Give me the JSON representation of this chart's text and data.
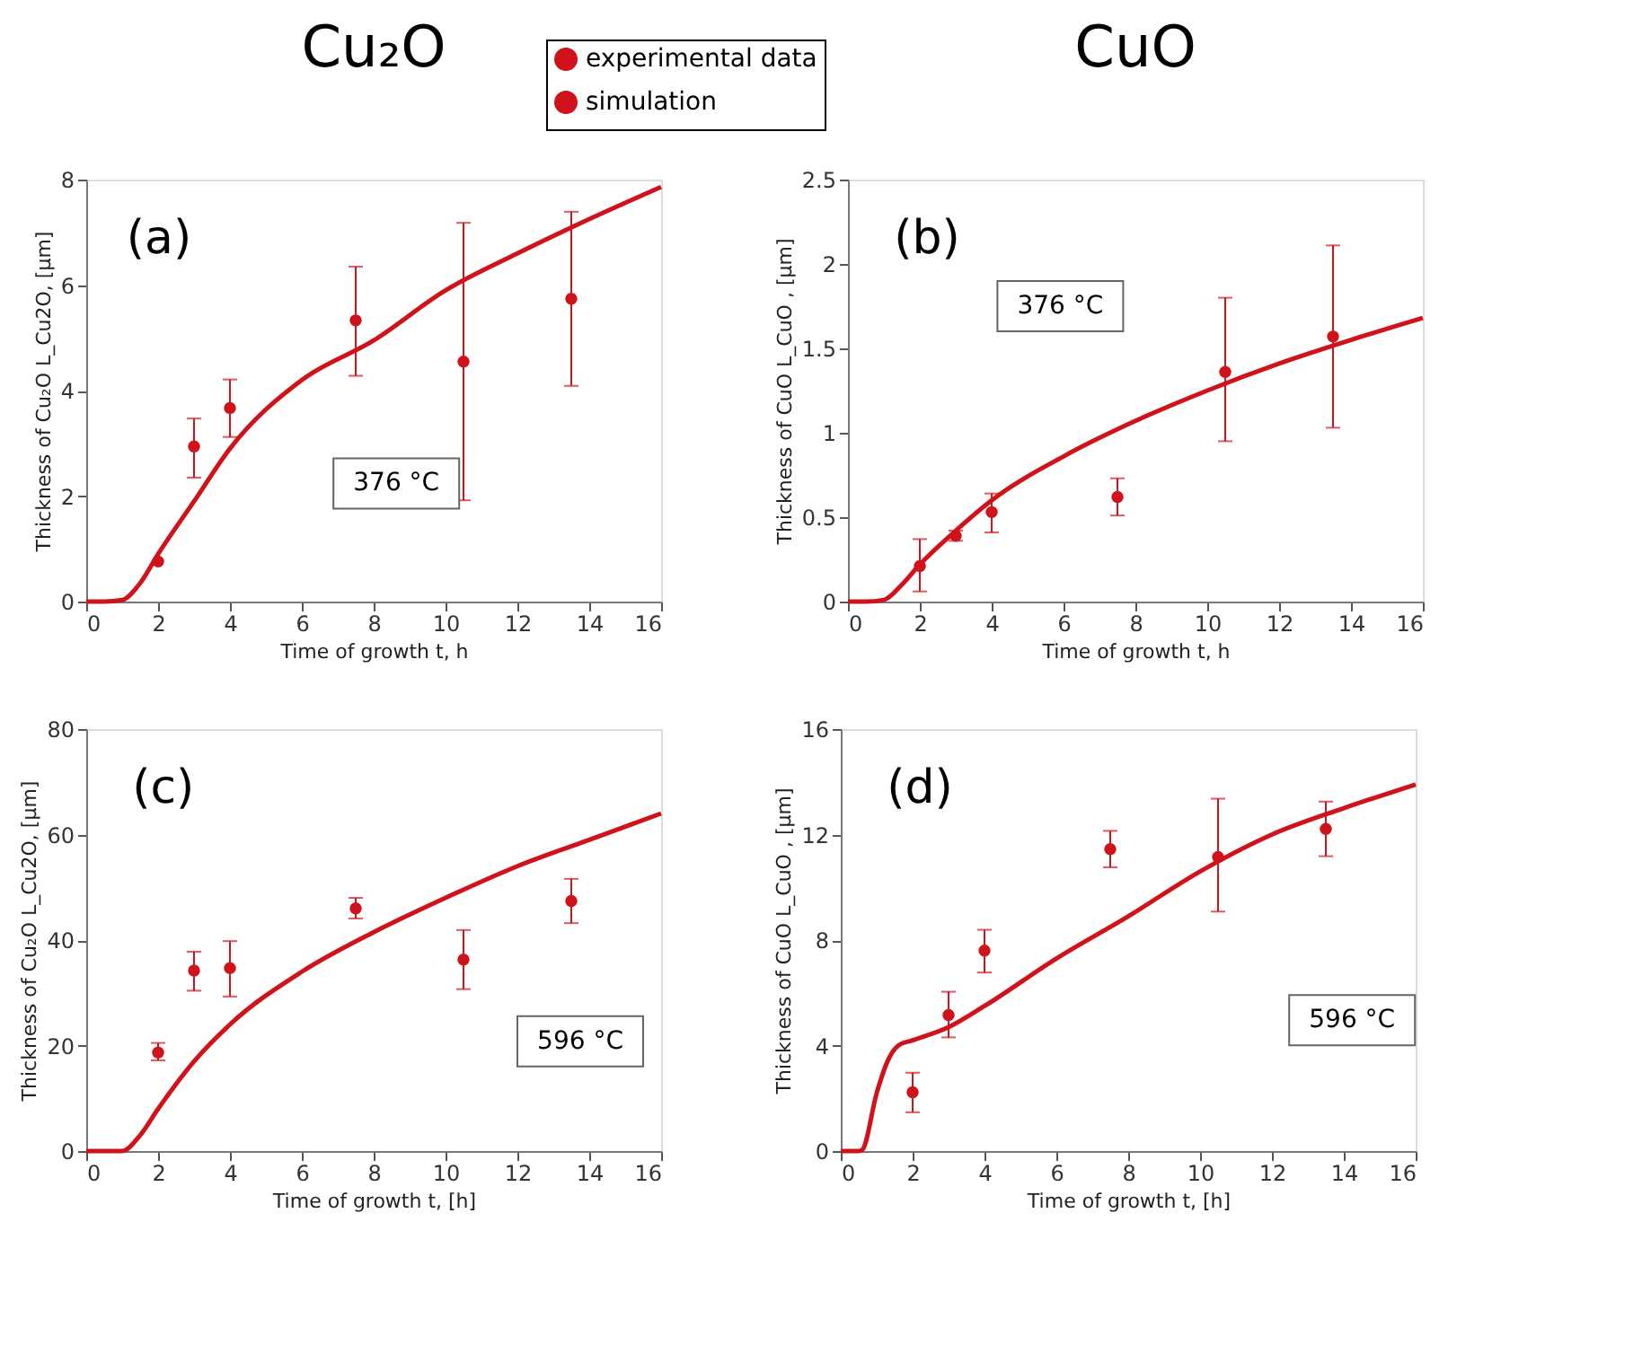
{
  "chart_data": [
    {
      "type": "scatter",
      "title": "Cu₂O",
      "xlabel": "Time of growth t, h",
      "ylabel": "Thickness of Cu₂O L_Cu2O, [µm]",
      "xlim": [
        0,
        16
      ],
      "ylim": [
        0,
        8
      ],
      "xticks": [
        0,
        2,
        4,
        6,
        8,
        10,
        12,
        14,
        16
      ],
      "yticks": [
        0,
        2,
        4,
        6,
        8
      ],
      "legend": "top right",
      "annotations": [
        "(a)",
        "376 °C"
      ],
      "series": [
        {
          "name": "experimental data",
          "color": "#d0121b",
          "marker": "circle",
          "x": [
            2,
            3,
            4,
            7.5,
            10.5,
            13.5
          ],
          "values": [
            0.76,
            2.94,
            3.67,
            5.33,
            4.55,
            5.74
          ],
          "errors": [
            null,
            [
              2.35,
              3.47
            ],
            [
              3.12,
              4.21
            ],
            [
              4.28,
              6.35
            ],
            [
              1.92,
              7.18
            ],
            [
              4.09,
              7.39
            ]
          ]
        },
        {
          "name": "simulation",
          "type": "line",
          "color": "#d0121b",
          "line_style": "solid",
          "x": [
            0,
            0.5,
            1,
            1.5,
            2,
            3,
            4,
            6,
            8,
            10,
            12,
            14,
            16
          ],
          "values": [
            0,
            0,
            0.03,
            0.35,
            0.9,
            1.9,
            2.9,
            4.2,
            4.95,
            5.9,
            6.6,
            7.25,
            7.86
          ]
        }
      ]
    },
    {
      "type": "scatter",
      "title": "CuO",
      "xlabel": "Time of growth t, h",
      "ylabel": "Thickness of CuO L_CuO , [µm]",
      "xlim": [
        0,
        16
      ],
      "ylim": [
        0,
        2.5
      ],
      "xticks": [
        0,
        2,
        4,
        6,
        8,
        10,
        12,
        14,
        16
      ],
      "yticks": [
        0,
        0.5,
        1,
        1.5,
        2,
        2.5
      ],
      "annotations": [
        "(b)",
        "376 °C"
      ],
      "series": [
        {
          "color": "#d0121b",
          "marker": "circle",
          "x": [
            2,
            3,
            4,
            7.5,
            10.5,
            13.5
          ],
          "values": [
            0.21,
            0.39,
            0.53,
            0.62,
            1.36,
            1.57
          ],
          "errors": [
            [
              0.06,
              0.37
            ],
            [
              0.36,
              0.42
            ],
            [
              0.41,
              0.64
            ],
            [
              0.51,
              0.73
            ],
            [
              0.95,
              1.8
            ],
            [
              1.03,
              2.11
            ]
          ]
        },
        {
          "type": "line",
          "color": "#d0121b",
          "line_style": "solid",
          "x": [
            0,
            0.5,
            1,
            1.5,
            2,
            3,
            4,
            6,
            8,
            10,
            12,
            14,
            16
          ],
          "values": [
            0,
            0,
            0.01,
            0.1,
            0.22,
            0.42,
            0.6,
            0.86,
            1.07,
            1.25,
            1.41,
            1.55,
            1.68
          ]
        }
      ]
    },
    {
      "type": "scatter",
      "xlabel": "Time of growth t, [h]",
      "ylabel": "Thickness of Cu₂O L_Cu2O, [µm]",
      "xlim": [
        0,
        16
      ],
      "ylim": [
        0,
        80
      ],
      "xticks": [
        0,
        2,
        4,
        6,
        8,
        10,
        12,
        14,
        16
      ],
      "yticks": [
        0,
        20,
        40,
        60,
        80
      ],
      "annotations": [
        "(c)",
        "596 °C"
      ],
      "series": [
        {
          "color": "#d0121b",
          "marker": "circle",
          "x": [
            2,
            3,
            4,
            7.5,
            10.5,
            13.5
          ],
          "values": [
            18.7,
            34.2,
            34.7,
            46.0,
            36.3,
            47.4
          ],
          "errors": [
            [
              17.2,
              20.5
            ],
            [
              30.4,
              37.8
            ],
            [
              29.3,
              39.8
            ],
            [
              44.1,
              48.0
            ],
            [
              30.7,
              41.9
            ],
            [
              43.2,
              51.6
            ]
          ]
        },
        {
          "type": "line",
          "color": "#d0121b",
          "line_style": "solid",
          "x": [
            0,
            0.5,
            1,
            1.5,
            2,
            3,
            4,
            6,
            8,
            10,
            12,
            14,
            16
          ],
          "values": [
            0,
            0,
            0,
            3,
            8,
            17,
            24,
            34,
            41.5,
            48,
            54,
            59,
            64
          ]
        }
      ]
    },
    {
      "type": "scatter",
      "xlabel": "Time of growth t, [h]",
      "ylabel": "Thickness of CuO L_CuO , [µm]",
      "xlim": [
        0,
        16
      ],
      "ylim": [
        0,
        16
      ],
      "xticks": [
        0,
        2,
        4,
        6,
        8,
        10,
        12,
        14,
        16
      ],
      "yticks": [
        0,
        4,
        8,
        12,
        16
      ],
      "annotations": [
        "(d)",
        "596 °C"
      ],
      "series": [
        {
          "color": "#d0121b",
          "marker": "circle",
          "x": [
            2,
            3,
            4,
            7.5,
            10.5,
            13.5
          ],
          "values": [
            2.23,
            5.16,
            7.6,
            11.45,
            11.15,
            12.21
          ],
          "errors": [
            [
              1.47,
              2.97
            ],
            [
              4.31,
              6.04
            ],
            [
              6.77,
              8.39
            ],
            [
              10.76,
              12.14
            ],
            [
              9.08,
              13.36
            ],
            [
              11.18,
              13.25
            ]
          ]
        },
        {
          "type": "line",
          "color": "#d0121b",
          "line_style": "solid",
          "x": [
            0,
            0.5,
            0.6,
            1,
            1.3,
            1.6,
            2,
            3,
            4,
            6,
            8,
            10,
            12,
            14,
            16
          ],
          "values": [
            0,
            0,
            0.05,
            2.2,
            3.4,
            4.0,
            4.2,
            4.7,
            5.5,
            7.3,
            8.9,
            10.6,
            12.0,
            13.0,
            13.9
          ]
        }
      ]
    }
  ]
}
